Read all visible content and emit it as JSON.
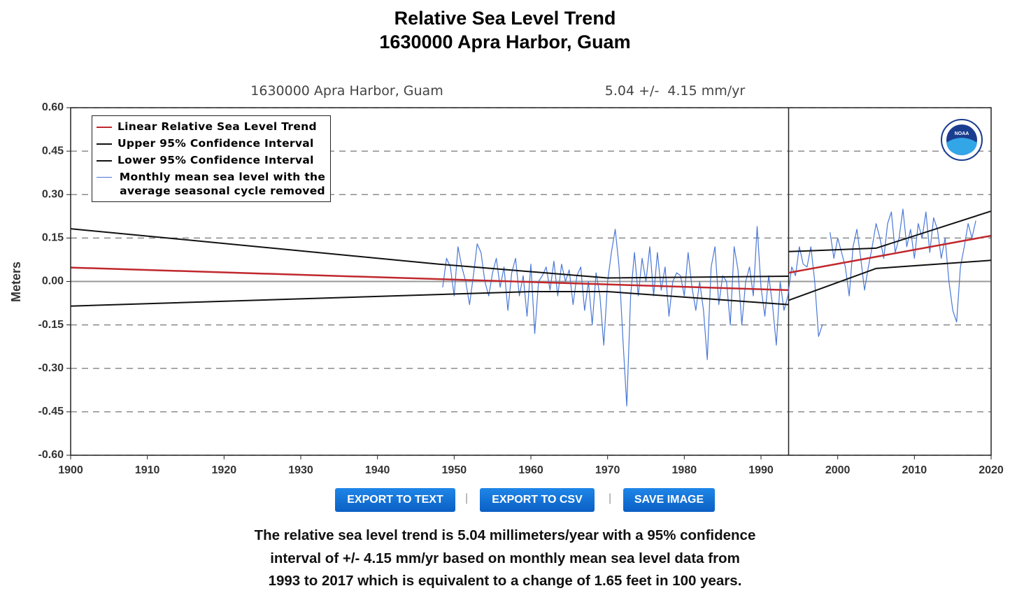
{
  "chart_data": {
    "type": "line",
    "title": "Relative Sea Level Trend",
    "subtitle": "1630000 Apra Harbor, Guam",
    "station_label": "1630000 Apra Harbor, Guam",
    "trend_label": "5.04 +/-  4.15 mm/yr",
    "ylabel": "Meters",
    "xlim": [
      1900,
      2020
    ],
    "xticks": [
      1900,
      1910,
      1920,
      1930,
      1940,
      1950,
      1960,
      1970,
      1980,
      1990,
      2000,
      2010,
      2020
    ],
    "ylim": [
      -0.6,
      0.6
    ],
    "yticks": [
      {
        "value": 0.6,
        "label": "0.60"
      },
      {
        "value": 0.45,
        "label": "0.45"
      },
      {
        "value": 0.3,
        "label": "0.30"
      },
      {
        "value": 0.15,
        "label": "0.15"
      },
      {
        "value": 0,
        "label": "0.00"
      },
      {
        "value": -0.15,
        "label": "-0.15"
      },
      {
        "value": -0.3,
        "label": "-0.30"
      },
      {
        "value": -0.45,
        "label": "-0.45"
      },
      {
        "value": -0.6,
        "label": "-0.60"
      }
    ],
    "grid": true,
    "breakpoint": 1993.6,
    "series": [
      {
        "name": "Linear Relative Sea Level Trend",
        "color": "#c0282d",
        "width": 2.5,
        "x": [
          1900,
          1993.6,
          1993.6,
          1993.6,
          2020
        ],
        "values": [
          0.048,
          -0.03,
          null,
          0.03,
          0.158
        ]
      },
      {
        "name": "Upper 95% Confidence Interval",
        "color": "#111111",
        "width": 2,
        "x": [
          1900,
          1948,
          1970,
          1993.6,
          1993.6,
          1993.6,
          2005,
          2020
        ],
        "values": [
          0.182,
          0.06,
          0.012,
          0.018,
          null,
          0.103,
          0.115,
          0.243
        ]
      },
      {
        "name": "Lower 95% Confidence Interval",
        "color": "#111111",
        "width": 2,
        "x": [
          1900,
          1960,
          1970,
          1993.6,
          1993.6,
          1993.6,
          2005,
          2020
        ],
        "values": [
          -0.085,
          -0.035,
          -0.035,
          -0.08,
          null,
          -0.065,
          0.045,
          0.073
        ]
      },
      {
        "name": "Monthly mean sea level with the average seasonal cycle removed",
        "color": "#4a78d6",
        "width": 1.2,
        "x": [
          1948.5,
          1949,
          1949.5,
          1950,
          1950.5,
          1951,
          1951.5,
          1952,
          1952.5,
          1953,
          1953.5,
          1954,
          1954.5,
          1955,
          1955.5,
          1956,
          1956.5,
          1957,
          1957.5,
          1958,
          1958.5,
          1959,
          1959.5,
          1960,
          1960.5,
          1961,
          1961.5,
          1962,
          1962.5,
          1963,
          1963.5,
          1964,
          1964.5,
          1965,
          1965.5,
          1966,
          1966.5,
          1967,
          1967.5,
          1968,
          1968.5,
          1969,
          1969.5,
          1970,
          1970.5,
          1971,
          1971.5,
          1972,
          1972.5,
          1973,
          1973.5,
          1974,
          1974.5,
          1975,
          1975.5,
          1976,
          1976.5,
          1977,
          1977.5,
          1978,
          1978.5,
          1979,
          1979.5,
          1980,
          1980.5,
          1981,
          1981.5,
          1982,
          1982.5,
          1983,
          1983.5,
          1984,
          1984.5,
          1985,
          1985.5,
          1986,
          1986.5,
          1987,
          1987.5,
          1988,
          1988.5,
          1989,
          1989.5,
          1990,
          1990.5,
          1991,
          1991.5,
          1992,
          1992.5,
          1993,
          1993.5,
          1994,
          1994.5,
          1995,
          1995.5,
          1996,
          1996.5,
          1997,
          1997.5,
          1998,
          1998.5,
          1999,
          1999.5,
          2000,
          2000.5,
          2001,
          2001.5,
          2002,
          2002.5,
          2003,
          2003.5,
          2004,
          2004.5,
          2005,
          2005.5,
          2006,
          2006.5,
          2007,
          2007.5,
          2008,
          2008.5,
          2009,
          2009.5,
          2010,
          2010.5,
          2011,
          2011.5,
          2012,
          2012.5,
          2013,
          2013.5,
          2014,
          2014.5,
          2015,
          2015.5,
          2016,
          2016.5,
          2017,
          2017.5,
          2018
        ],
        "values": [
          -0.02,
          0.08,
          0.05,
          -0.05,
          0.12,
          0.05,
          0.0,
          -0.08,
          0.02,
          0.13,
          0.1,
          0.0,
          -0.05,
          0.03,
          0.08,
          -0.02,
          0.05,
          -0.1,
          0.03,
          0.08,
          -0.05,
          0.02,
          -0.12,
          0.06,
          -0.18,
          0.0,
          0.02,
          0.05,
          -0.03,
          0.07,
          -0.05,
          0.06,
          0.0,
          0.04,
          -0.08,
          0.02,
          0.05,
          -0.1,
          0.0,
          -0.15,
          0.03,
          -0.05,
          -0.22,
          0.0,
          0.1,
          0.18,
          0.05,
          -0.2,
          -0.43,
          -0.05,
          0.1,
          -0.05,
          0.08,
          0.0,
          0.12,
          -0.05,
          0.1,
          -0.03,
          0.05,
          -0.12,
          0.0,
          0.03,
          0.02,
          -0.05,
          0.1,
          -0.02,
          -0.1,
          0.0,
          -0.1,
          -0.27,
          0.05,
          0.12,
          -0.08,
          0.02,
          0.0,
          -0.15,
          0.12,
          0.04,
          -0.15,
          0.0,
          0.05,
          -0.05,
          0.19,
          -0.02,
          -0.12,
          0.02,
          -0.08,
          -0.22,
          0.0,
          -0.1,
          -0.05,
          0.05,
          0.02,
          0.12,
          0.06,
          0.05,
          0.12,
          0.0,
          -0.19,
          -0.15,
          null,
          0.17,
          0.08,
          0.15,
          0.1,
          0.05,
          -0.05,
          0.12,
          0.18,
          0.08,
          -0.03,
          0.05,
          0.12,
          0.2,
          0.15,
          0.08,
          0.2,
          0.24,
          0.1,
          0.15,
          0.25,
          0.12,
          0.18,
          0.08,
          0.2,
          0.15,
          0.24,
          0.1,
          0.22,
          0.18,
          0.08,
          0.15,
          0.0,
          -0.1,
          -0.14,
          0.05,
          0.12,
          0.2,
          0.15,
          0.21
        ]
      }
    ]
  },
  "buttons": [
    "EXPORT TO TEXT",
    "EXPORT TO CSV",
    "SAVE IMAGE"
  ],
  "separator": "|",
  "description": [
    "The relative sea level trend is 5.04 millimeters/year with a 95% confidence",
    "interval of +/- 4.15 mm/yr based on monthly mean sea level data from",
    "1993 to 2017 which is equivalent to a change of 1.65 feet in 100 years."
  ]
}
